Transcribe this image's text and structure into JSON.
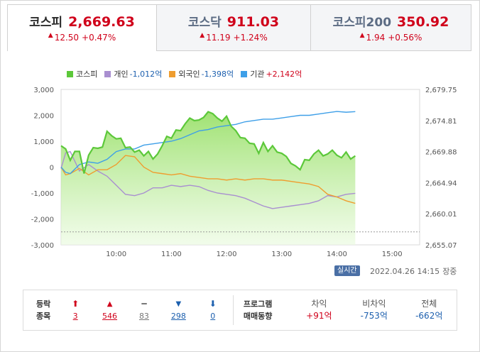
{
  "tabs": [
    {
      "name": "코스피",
      "value": "2,669.63",
      "change": "12.50",
      "percent": "+0.47%",
      "active": true
    },
    {
      "name": "코스닥",
      "value": "911.03",
      "change": "11.19",
      "percent": "+1.24%",
      "active": false
    },
    {
      "name": "코스피200",
      "value": "350.92",
      "change": "1.94",
      "percent": "+0.56%",
      "active": false
    }
  ],
  "legend": [
    {
      "label": "코스피",
      "value": "",
      "color": "#5cc83a"
    },
    {
      "label": "개인",
      "value": "-1,012억",
      "color": "#a98fd0"
    },
    {
      "label": "외국인",
      "value": "-1,398억",
      "color": "#ef9d2f"
    },
    {
      "label": "기관",
      "value": "+2,142억",
      "color": "#3e9fe8"
    }
  ],
  "chart_data": {
    "type": "line",
    "x_ticks": [
      "10:00",
      "11:00",
      "12:00",
      "13:00",
      "14:00",
      "15:00"
    ],
    "left_axis": {
      "ticks": [
        "3,000",
        "2,000",
        "1,000",
        "0",
        "-1,000",
        "-2,000",
        "-3,000"
      ],
      "ylim": [
        -3000,
        3000
      ]
    },
    "right_axis": {
      "ticks": [
        "2,679.75",
        "2,674.81",
        "2,669.88",
        "2,664.94",
        "2,660.01",
        "2,655.07"
      ],
      "ylim": [
        2655.07,
        2679.75
      ]
    },
    "reference_line": 2657.13,
    "x_range_minutes": [
      0,
      390
    ],
    "series": [
      {
        "name": "코스피",
        "axis": "right",
        "area": true,
        "x_minutes": [
          0,
          5,
          10,
          15,
          20,
          25,
          30,
          35,
          40,
          45,
          50,
          55,
          60,
          65,
          70,
          75,
          80,
          85,
          90,
          95,
          100,
          105,
          110,
          115,
          120,
          125,
          130,
          135,
          140,
          145,
          150,
          155,
          160,
          165,
          170,
          175,
          180,
          185,
          190,
          195,
          200,
          205,
          210,
          215,
          220,
          225,
          230,
          235,
          240,
          245,
          250,
          255,
          260,
          265,
          270,
          275,
          280,
          285,
          290,
          295,
          300,
          305,
          310,
          315,
          320
        ],
        "y": [
          2670.8,
          2670.3,
          2668.5,
          2669.9,
          2669.9,
          2666.4,
          2669.3,
          2670.5,
          2670.4,
          2670.6,
          2673.1,
          2672.4,
          2671.9,
          2672.0,
          2670.5,
          2670.6,
          2669.8,
          2670.1,
          2669.2,
          2669.9,
          2668.7,
          2669.5,
          2670.8,
          2672.3,
          2672.0,
          2673.3,
          2673.2,
          2674.3,
          2675.2,
          2674.8,
          2674.9,
          2675.3,
          2676.2,
          2675.9,
          2675.2,
          2674.7,
          2675.5,
          2673.9,
          2673.2,
          2672.1,
          2672.0,
          2671.2,
          2671.1,
          2669.6,
          2671.3,
          2669.9,
          2670.8,
          2669.8,
          2669.6,
          2669.1,
          2668.0,
          2667.6,
          2667.0,
          2668.6,
          2668.5,
          2669.5,
          2670.1,
          2669.2,
          2669.5,
          2670.1,
          2669.3,
          2668.9,
          2669.8,
          2668.7,
          2669.2
        ]
      },
      {
        "name": "개인",
        "axis": "left",
        "x_minutes": [
          0,
          5,
          10,
          20,
          30,
          40,
          50,
          60,
          70,
          80,
          90,
          100,
          110,
          120,
          130,
          140,
          150,
          160,
          170,
          180,
          190,
          200,
          210,
          220,
          230,
          240,
          250,
          260,
          270,
          280,
          290,
          300,
          310,
          320
        ],
        "y": [
          -50,
          550,
          600,
          -150,
          100,
          -150,
          -350,
          -700,
          -1050,
          -1100,
          -1000,
          -800,
          -800,
          -700,
          -750,
          -700,
          -750,
          -900,
          -1000,
          -1050,
          -1100,
          -1200,
          -1350,
          -1500,
          -1600,
          -1550,
          -1500,
          -1450,
          -1400,
          -1300,
          -1100,
          -1150,
          -1050,
          -1012
        ]
      },
      {
        "name": "외국인",
        "axis": "left",
        "x_minutes": [
          0,
          5,
          10,
          20,
          30,
          40,
          50,
          60,
          70,
          80,
          90,
          100,
          110,
          120,
          130,
          140,
          150,
          160,
          170,
          180,
          190,
          200,
          210,
          220,
          230,
          240,
          250,
          260,
          270,
          280,
          290,
          300,
          310,
          320
        ],
        "y": [
          0,
          -300,
          -250,
          -50,
          -300,
          -100,
          -100,
          100,
          450,
          400,
          0,
          -200,
          -250,
          -300,
          -250,
          -350,
          -400,
          -450,
          -450,
          -500,
          -450,
          -500,
          -450,
          -450,
          -500,
          -500,
          -550,
          -600,
          -650,
          -750,
          -1050,
          -1150,
          -1300,
          -1398
        ]
      },
      {
        "name": "기관",
        "axis": "left",
        "x_minutes": [
          0,
          5,
          10,
          20,
          30,
          40,
          50,
          60,
          70,
          80,
          90,
          100,
          110,
          120,
          130,
          140,
          150,
          160,
          170,
          180,
          190,
          200,
          210,
          220,
          230,
          240,
          250,
          260,
          270,
          280,
          290,
          300,
          310,
          320
        ],
        "y": [
          0,
          -200,
          -250,
          100,
          200,
          150,
          300,
          600,
          700,
          700,
          850,
          900,
          950,
          1000,
          1100,
          1250,
          1400,
          1450,
          1550,
          1600,
          1650,
          1750,
          1800,
          1850,
          1850,
          1900,
          1950,
          2000,
          2000,
          2050,
          2100,
          2150,
          2120,
          2142
        ]
      }
    ]
  },
  "status": {
    "realtime_label": "실시간",
    "timestamp": "2022.04.26 14:15",
    "market_status": "장중"
  },
  "breadth": {
    "title_line1": "등락",
    "title_line2": "종목",
    "items": [
      {
        "icon": "upper-limit-icon",
        "symbol": "⬆",
        "count": "3",
        "color": "red"
      },
      {
        "icon": "up-icon",
        "symbol": "▲",
        "count": "546",
        "color": "red"
      },
      {
        "icon": "unchanged-icon",
        "symbol": "━",
        "count": "83",
        "color": "gray"
      },
      {
        "icon": "down-icon",
        "symbol": "▼",
        "count": "298",
        "color": "blue"
      },
      {
        "icon": "lower-limit-icon",
        "symbol": "⬇",
        "count": "0",
        "color": "blue"
      }
    ]
  },
  "program": {
    "title_line1": "프로그램",
    "title_line2": "매매동향",
    "items": [
      {
        "label": "차익",
        "value": "+91억",
        "color": "red"
      },
      {
        "label": "비차익",
        "value": "-753억",
        "color": "blue"
      },
      {
        "label": "전체",
        "value": "-662억",
        "color": "blue"
      }
    ]
  }
}
